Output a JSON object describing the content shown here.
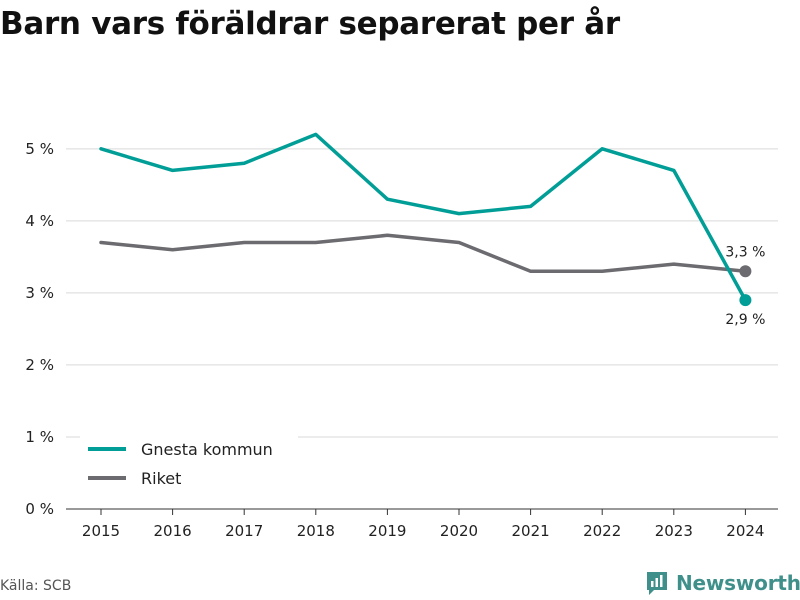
{
  "title": "Barn vars föräldrar separerat per år",
  "source": "Källa: SCB",
  "brand": "Newsworthy",
  "colors": {
    "gnesta": "#009e96",
    "riket": "#6b6b70",
    "grid": "#d9d9d9"
  },
  "chart_data": {
    "type": "line",
    "title": "Barn vars föräldrar separerat per år",
    "x": [
      "2015",
      "2016",
      "2017",
      "2018",
      "2019",
      "2020",
      "2021",
      "2022",
      "2023",
      "2024"
    ],
    "ylim": [
      0,
      5.4
    ],
    "yticks": [
      0,
      1,
      2,
      3,
      4,
      5
    ],
    "ytick_labels": [
      "0 %",
      "1 %",
      "2 %",
      "3 %",
      "4 %",
      "5 %"
    ],
    "grid": true,
    "legend": "bottom-left",
    "series": [
      {
        "name": "Gnesta kommun",
        "key": "gnesta",
        "values": [
          5.0,
          4.7,
          4.8,
          5.2,
          4.3,
          4.1,
          4.2,
          5.0,
          4.7,
          2.9
        ],
        "end_label": "2,9 %"
      },
      {
        "name": "Riket",
        "key": "riket",
        "values": [
          3.7,
          3.6,
          3.7,
          3.7,
          3.8,
          3.7,
          3.3,
          3.3,
          3.4,
          3.3
        ],
        "end_label": "3,3 %"
      }
    ]
  }
}
